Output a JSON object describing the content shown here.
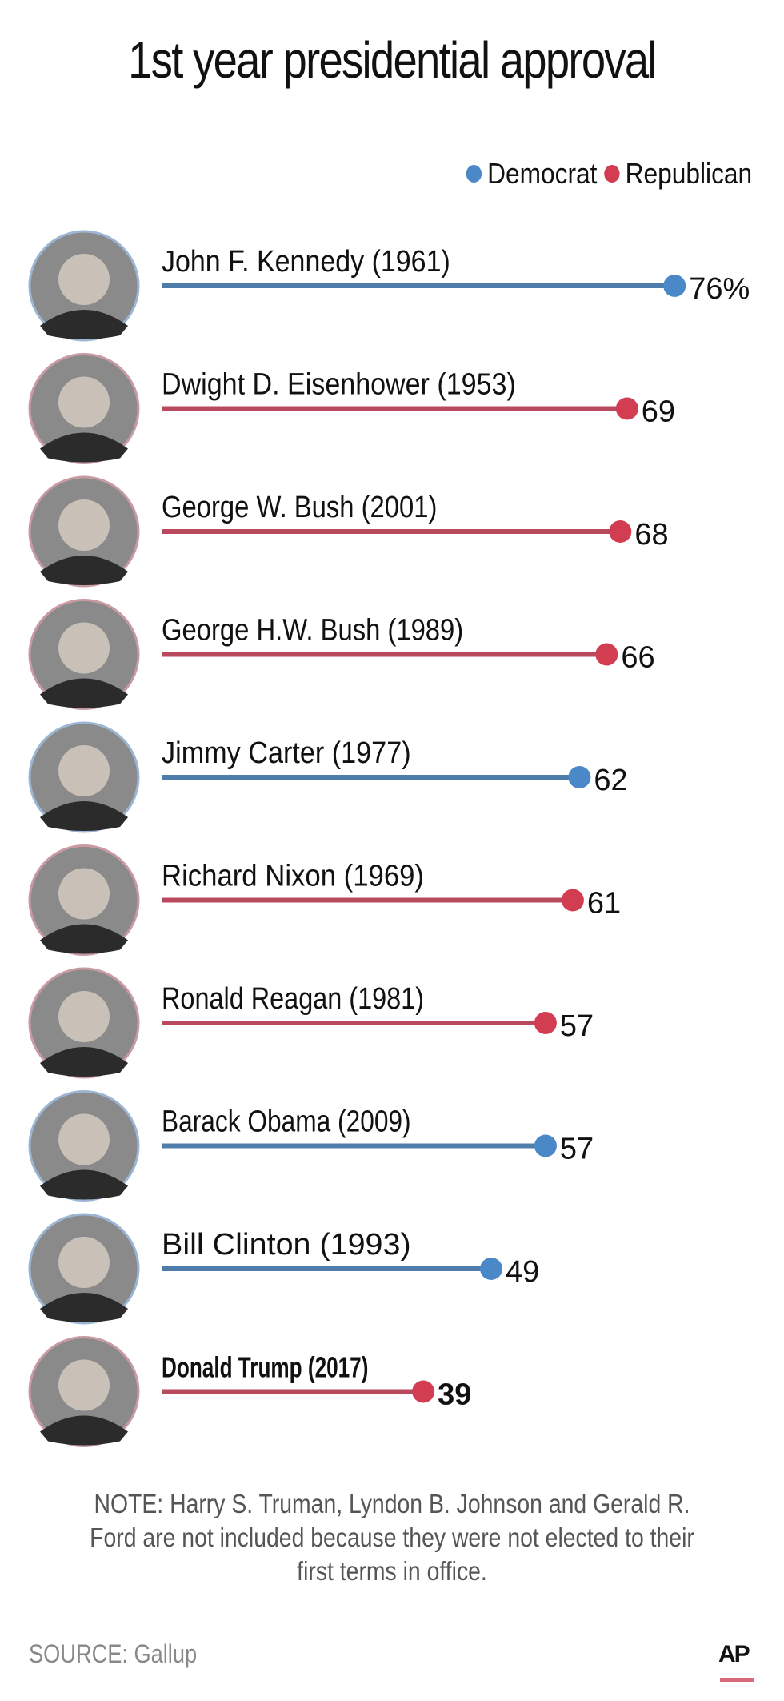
{
  "chart_data": {
    "type": "lollipop",
    "title": "1st year presidential approval",
    "legend": [
      {
        "name": "Democrat",
        "color": "#4a88c7"
      },
      {
        "name": "Republican",
        "color": "#d23d52"
      }
    ],
    "legend_position": "top-right",
    "value_suffix_first": "%",
    "grid": false,
    "xlim": [
      0,
      80
    ],
    "rows": [
      {
        "label": "John F. Kennedy (1961)",
        "value": 76,
        "party": "Democrat",
        "display": "76%",
        "highlight": false
      },
      {
        "label": "Dwight D. Eisenhower (1953)",
        "value": 69,
        "party": "Republican",
        "display": "69",
        "highlight": false
      },
      {
        "label": "George W. Bush (2001)",
        "value": 68,
        "party": "Republican",
        "display": "68",
        "highlight": false
      },
      {
        "label": "George H.W. Bush (1989)",
        "value": 66,
        "party": "Republican",
        "display": "66",
        "highlight": false
      },
      {
        "label": "Jimmy Carter (1977)",
        "value": 62,
        "party": "Democrat",
        "display": "62",
        "highlight": false
      },
      {
        "label": "Richard Nixon (1969)",
        "value": 61,
        "party": "Republican",
        "display": "61",
        "highlight": false
      },
      {
        "label": "Ronald Reagan (1981)",
        "value": 57,
        "party": "Republican",
        "display": "57",
        "highlight": false
      },
      {
        "label": "Barack Obama (2009)",
        "value": 57,
        "party": "Democrat",
        "display": "57",
        "highlight": false
      },
      {
        "label": "Bill Clinton (1993)",
        "value": 49,
        "party": "Democrat",
        "display": "49",
        "highlight": false
      },
      {
        "label": "Donald Trump (2017)",
        "value": 39,
        "party": "Republican",
        "display": "39",
        "highlight": true
      }
    ]
  },
  "note": "NOTE: Harry S. Truman, Lyndon B. Johnson and Gerald R. Ford are not included because they were not elected to their first terms in office.",
  "source": "SOURCE: Gallup",
  "logo": "AP"
}
